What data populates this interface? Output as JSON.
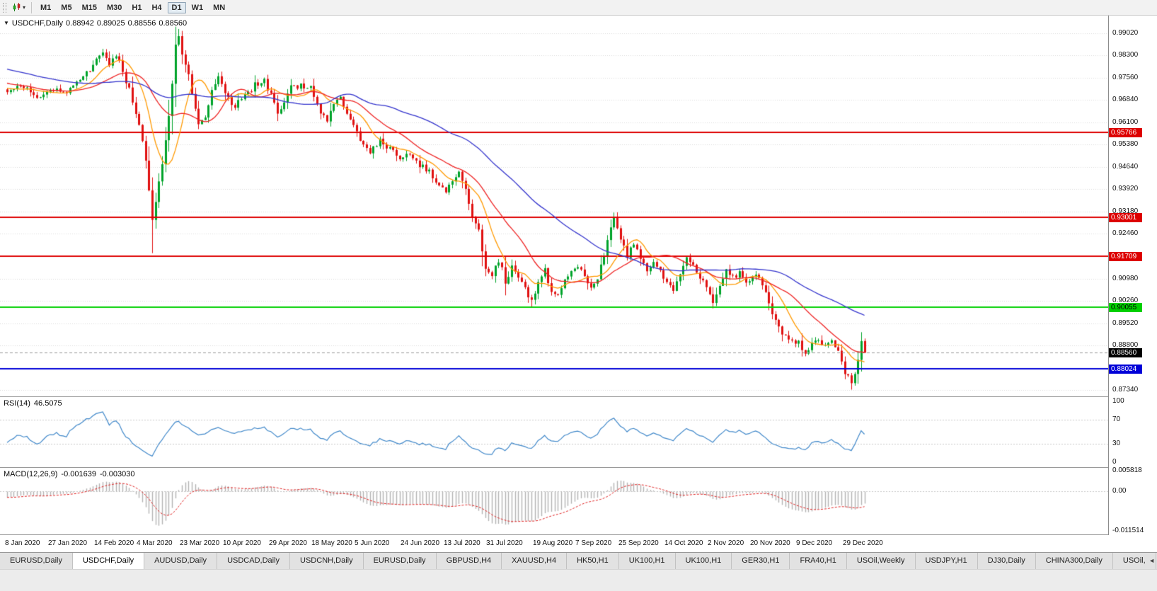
{
  "toolbar": {
    "caret": "▾",
    "timeframes": [
      {
        "label": "M1",
        "active": false
      },
      {
        "label": "M5",
        "active": false
      },
      {
        "label": "M15",
        "active": false
      },
      {
        "label": "M30",
        "active": false
      },
      {
        "label": "H1",
        "active": false
      },
      {
        "label": "H4",
        "active": false
      },
      {
        "label": "D1",
        "active": true
      },
      {
        "label": "W1",
        "active": false
      },
      {
        "label": "MN",
        "active": false
      }
    ]
  },
  "chart_header": {
    "collapse_icon": "▼",
    "title": "USDCHF,Daily",
    "open": "0.88942",
    "high": "0.89025",
    "low": "0.88556",
    "close": "0.88560"
  },
  "rsi_panel": {
    "label": "RSI(14)",
    "value": "46.5075",
    "axis_labels": [
      "100",
      "70",
      "30",
      "0"
    ]
  },
  "macd_panel": {
    "label": "MACD(12,26,9)",
    "macd_value": "-0.001639",
    "signal_value": "-0.003030",
    "axis_top": "0.005818",
    "axis_zero": "0.00",
    "axis_bottom": "-0.011514"
  },
  "tabs": {
    "active_index": 1,
    "scroll_icon": "◄",
    "items": [
      "EURUSD,Daily",
      "USDCHF,Daily",
      "AUDUSD,Daily",
      "USDCAD,Daily",
      "USDCNH,Daily",
      "EURUSD,Daily",
      "GBPUSD,H4",
      "XAUUSD,H4",
      "HK50,H1",
      "UK100,H1",
      "UK100,H1",
      "GER30,H1",
      "FRA40,H1",
      "USOil,Weekly",
      "USDJPY,H1",
      "DJ30,Daily",
      "CHINA300,Daily",
      "USOil,"
    ]
  },
  "chart_data": {
    "type": "candlestick",
    "symbol": "USDCHF",
    "timeframe": "Daily",
    "ohlc_display": {
      "open": 0.88942,
      "high": 0.89025,
      "low": 0.88556,
      "close": 0.8856
    },
    "current_price": 0.8856,
    "num_candles": 261,
    "y_axis": {
      "min": 0.8713,
      "max": 0.996,
      "tick_labels": [
        "0.99020",
        "0.98300",
        "0.97560",
        "0.96840",
        "0.96100",
        "0.95380",
        "0.94640",
        "0.93920",
        "0.93180",
        "0.92460",
        "0.91720",
        "0.90980",
        "0.90260",
        "0.89520",
        "0.88800",
        "0.88060",
        "0.87340"
      ]
    },
    "x_axis_dates": [
      "8 Jan 2020",
      "27 Jan 2020",
      "14 Feb 2020",
      "4 Mar 2020",
      "23 Mar 2020",
      "10 Apr 2020",
      "29 Apr 2020",
      "18 May 2020",
      "5 Jun 2020",
      "24 Jun 2020",
      "13 Jul 2020",
      "31 Jul 2020",
      "19 Aug 2020",
      "7 Sep 2020",
      "25 Sep 2020",
      "14 Oct 2020",
      "2 Nov 2020",
      "20 Nov 2020",
      "9 Dec 2020",
      "29 Dec 2020"
    ],
    "date_label_indices": [
      0,
      13,
      27,
      40,
      53,
      66,
      80,
      93,
      106,
      120,
      133,
      146,
      160,
      173,
      186,
      200,
      213,
      226,
      240,
      254
    ],
    "price_anchors": [
      [
        0,
        0.9712
      ],
      [
        3,
        0.973
      ],
      [
        6,
        0.9718
      ],
      [
        9,
        0.969
      ],
      [
        12,
        0.9708
      ],
      [
        15,
        0.9722
      ],
      [
        18,
        0.9716
      ],
      [
        21,
        0.9745
      ],
      [
        24,
        0.9775
      ],
      [
        27,
        0.9812
      ],
      [
        29,
        0.9838
      ],
      [
        31,
        0.98
      ],
      [
        33,
        0.9826
      ],
      [
        35,
        0.978
      ],
      [
        37,
        0.9718
      ],
      [
        39,
        0.9648
      ],
      [
        41,
        0.956
      ],
      [
        42,
        0.9478
      ],
      [
        43,
        0.9388
      ],
      [
        44,
        0.93
      ],
      [
        45,
        0.9346
      ],
      [
        46,
        0.942
      ],
      [
        47,
        0.9482
      ],
      [
        48,
        0.9558
      ],
      [
        49,
        0.964
      ],
      [
        50,
        0.9742
      ],
      [
        51,
        0.9858
      ],
      [
        52,
        0.9886
      ],
      [
        53,
        0.984
      ],
      [
        55,
        0.9758
      ],
      [
        57,
        0.9648
      ],
      [
        58,
        0.9602
      ],
      [
        60,
        0.9632
      ],
      [
        62,
        0.9722
      ],
      [
        64,
        0.9762
      ],
      [
        66,
        0.97
      ],
      [
        69,
        0.9665
      ],
      [
        72,
        0.9702
      ],
      [
        75,
        0.9732
      ],
      [
        78,
        0.9746
      ],
      [
        80,
        0.97
      ],
      [
        82,
        0.9632
      ],
      [
        84,
        0.968
      ],
      [
        86,
        0.9722
      ],
      [
        89,
        0.9736
      ],
      [
        92,
        0.972
      ],
      [
        95,
        0.9642
      ],
      [
        97,
        0.9615
      ],
      [
        99,
        0.966
      ],
      [
        101,
        0.9692
      ],
      [
        103,
        0.964
      ],
      [
        105,
        0.96
      ],
      [
        107,
        0.9545
      ],
      [
        110,
        0.9515
      ],
      [
        113,
        0.9552
      ],
      [
        116,
        0.9525
      ],
      [
        119,
        0.949
      ],
      [
        122,
        0.9506
      ],
      [
        125,
        0.947
      ],
      [
        128,
        0.9446
      ],
      [
        131,
        0.941
      ],
      [
        133,
        0.9386
      ],
      [
        135,
        0.9422
      ],
      [
        137,
        0.9442
      ],
      [
        139,
        0.939
      ],
      [
        141,
        0.931
      ],
      [
        143,
        0.925
      ],
      [
        145,
        0.914
      ],
      [
        147,
        0.9112
      ],
      [
        149,
        0.9162
      ],
      [
        151,
        0.9092
      ],
      [
        153,
        0.9132
      ],
      [
        155,
        0.9106
      ],
      [
        157,
        0.906
      ],
      [
        159,
        0.9022
      ],
      [
        161,
        0.9082
      ],
      [
        163,
        0.9122
      ],
      [
        165,
        0.9062
      ],
      [
        167,
        0.9036
      ],
      [
        169,
        0.9092
      ],
      [
        171,
        0.9116
      ],
      [
        173,
        0.9136
      ],
      [
        175,
        0.9102
      ],
      [
        177,
        0.9076
      ],
      [
        179,
        0.9106
      ],
      [
        181,
        0.9182
      ],
      [
        183,
        0.9262
      ],
      [
        184,
        0.9292
      ],
      [
        186,
        0.9232
      ],
      [
        188,
        0.9172
      ],
      [
        190,
        0.9212
      ],
      [
        192,
        0.9166
      ],
      [
        194,
        0.9132
      ],
      [
        196,
        0.9152
      ],
      [
        198,
        0.9126
      ],
      [
        200,
        0.9086
      ],
      [
        202,
        0.9066
      ],
      [
        204,
        0.9106
      ],
      [
        206,
        0.9162
      ],
      [
        208,
        0.9136
      ],
      [
        210,
        0.9106
      ],
      [
        212,
        0.906
      ],
      [
        214,
        0.9016
      ],
      [
        216,
        0.9076
      ],
      [
        218,
        0.9132
      ],
      [
        220,
        0.9102
      ],
      [
        222,
        0.9116
      ],
      [
        224,
        0.9086
      ],
      [
        226,
        0.9112
      ],
      [
        228,
        0.9092
      ],
      [
        230,
        0.9056
      ],
      [
        232,
        0.899
      ],
      [
        234,
        0.8932
      ],
      [
        236,
        0.8916
      ],
      [
        238,
        0.8896
      ],
      [
        240,
        0.8886
      ],
      [
        242,
        0.8852
      ],
      [
        244,
        0.8882
      ],
      [
        246,
        0.8902
      ],
      [
        248,
        0.8872
      ],
      [
        250,
        0.8896
      ],
      [
        252,
        0.8866
      ],
      [
        253,
        0.8822
      ],
      [
        254,
        0.8796
      ],
      [
        255,
        0.8772
      ],
      [
        256,
        0.8746
      ],
      [
        257,
        0.8792
      ],
      [
        258,
        0.8838
      ],
      [
        259,
        0.8894
      ],
      [
        260,
        0.8856
      ]
    ],
    "wick_overrides": {
      "44": {
        "low": 0.9182
      },
      "52": {
        "high": 0.9901
      },
      "159": {
        "low": 0.9005
      },
      "214": {
        "low": 0.9001
      },
      "256": {
        "low": 0.8737
      }
    },
    "last_candle": {
      "o": 0.88942,
      "h": 0.89025,
      "l": 0.88556,
      "c": 0.8856
    },
    "horizontal_levels": [
      {
        "price": 0.95766,
        "color": "#dd0000",
        "type": "resistance"
      },
      {
        "price": 0.93001,
        "color": "#dd0000",
        "type": "resistance"
      },
      {
        "price": 0.91709,
        "color": "#dd0000",
        "type": "resistance"
      },
      {
        "price": 0.90055,
        "color": "#00d000",
        "type": "support"
      },
      {
        "price": 0.88024,
        "color": "#0000d8",
        "type": "support"
      }
    ],
    "price_tags": [
      {
        "value": "0.95766",
        "bg": "#dd0000",
        "fg": "#ffffff",
        "price": 0.95766
      },
      {
        "value": "0.93001",
        "bg": "#dd0000",
        "fg": "#ffffff",
        "price": 0.93001
      },
      {
        "value": "0.91709",
        "bg": "#dd0000",
        "fg": "#ffffff",
        "price": 0.91709
      },
      {
        "value": "0.90055",
        "bg": "#00d000",
        "fg": "#000000",
        "price": 0.90055
      },
      {
        "value": "0.88560",
        "bg": "#000000",
        "fg": "#ffffff",
        "price": 0.8856
      },
      {
        "value": "0.88024",
        "bg": "#0000d8",
        "fg": "#ffffff",
        "price": 0.88024
      }
    ],
    "moving_averages": [
      {
        "period": 10,
        "color": "#ff9900"
      },
      {
        "period": 22,
        "color": "#ee2222"
      },
      {
        "period": 55,
        "color": "#3333cc"
      }
    ],
    "indicators": {
      "rsi": {
        "period": 14,
        "current": 46.5075,
        "scale": [
          0,
          100
        ],
        "levels": [
          30,
          70
        ]
      },
      "macd": {
        "fast": 12,
        "slow": 26,
        "signal": 9,
        "current_macd": -0.001639,
        "current_signal": -0.00303,
        "scale_max": 0.005818,
        "scale_min": -0.011514
      }
    },
    "colors": {
      "up": "#00a32a",
      "down": "#e01010",
      "grid": "#dadada",
      "rsi_line": "#3f87c9",
      "rsi_level": "#c8c8c8",
      "macd_hist": "#b2b2b2",
      "macd_signal": "#e02020",
      "current_line": "#999999"
    }
  }
}
